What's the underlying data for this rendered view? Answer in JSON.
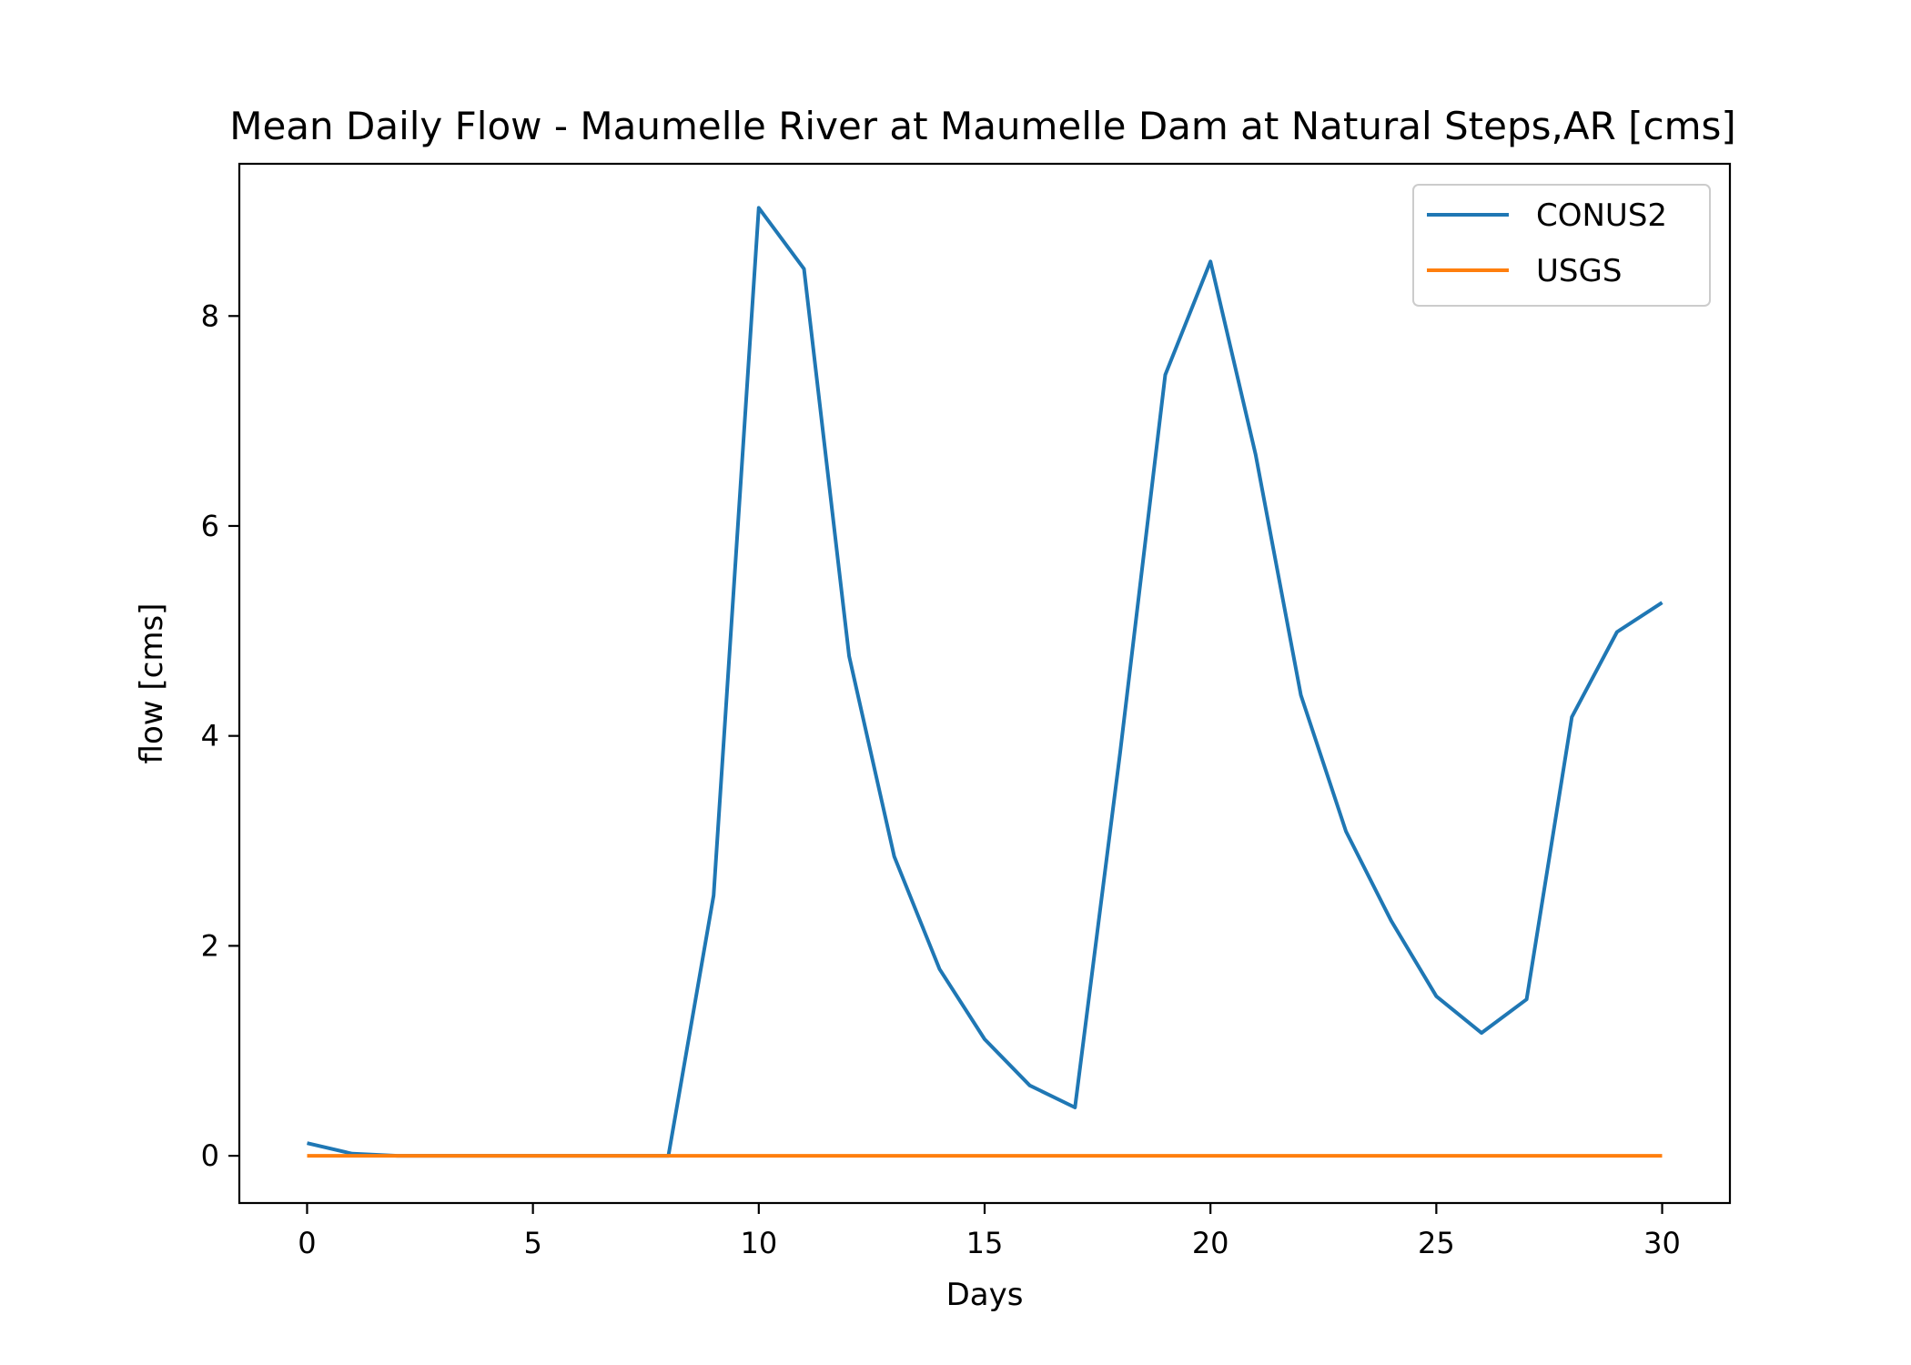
{
  "chart_data": {
    "type": "line",
    "title": "Mean Daily Flow - Maumelle River at Maumelle Dam at Natural Steps,AR [cms]",
    "xlabel": "Days",
    "ylabel": "flow [cms]",
    "xlim": [
      -1.5,
      31.5
    ],
    "ylim": [
      -0.45,
      9.45
    ],
    "xticks": [
      0,
      5,
      10,
      15,
      20,
      25,
      30
    ],
    "yticks": [
      0,
      2,
      4,
      6,
      8
    ],
    "xtick_labels": [
      "0",
      "5",
      "10",
      "15",
      "20",
      "25",
      "30"
    ],
    "ytick_labels": [
      "0",
      "2",
      "4",
      "6",
      "8"
    ],
    "grid": false,
    "legend_position": "top-right",
    "x": [
      0,
      1,
      2,
      3,
      4,
      5,
      6,
      7,
      8,
      9,
      10,
      11,
      12,
      13,
      14,
      15,
      16,
      17,
      18,
      19,
      20,
      21,
      22,
      23,
      24,
      25,
      26,
      27,
      28,
      29,
      30
    ],
    "series": [
      {
        "name": "CONUS2",
        "color": "#1f77b4",
        "values": [
          0.12,
          0.02,
          0.0,
          0.0,
          0.0,
          0.0,
          0.0,
          0.0,
          0.0,
          2.48,
          9.03,
          8.45,
          4.76,
          2.85,
          1.78,
          1.11,
          0.67,
          0.46,
          3.84,
          7.44,
          8.52,
          6.68,
          4.39,
          3.09,
          2.24,
          1.52,
          1.17,
          1.49,
          4.18,
          4.99,
          5.27
        ]
      },
      {
        "name": "USGS",
        "color": "#ff7f0e",
        "values": [
          0,
          0,
          0,
          0,
          0,
          0,
          0,
          0,
          0,
          0,
          0,
          0,
          0,
          0,
          0,
          0,
          0,
          0,
          0,
          0,
          0,
          0,
          0,
          0,
          0,
          0,
          0,
          0,
          0,
          0,
          0
        ]
      }
    ]
  }
}
